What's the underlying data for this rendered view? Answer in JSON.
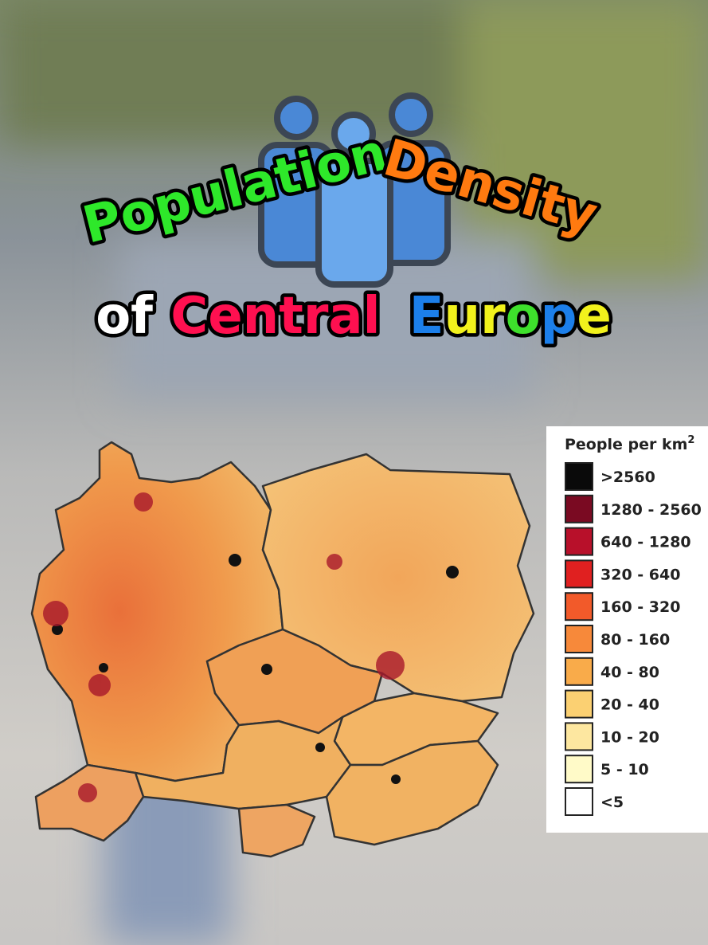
{
  "header": {
    "line1": [
      {
        "text": "Population",
        "color": "#2ee82a"
      },
      {
        "text": "Density",
        "color": "#ff7a10"
      }
    ],
    "line2": [
      {
        "text": "of",
        "color": "#ffffff"
      },
      {
        "text": "Central",
        "color": "#ff1050"
      }
    ],
    "europe": [
      {
        "text": "E",
        "color": "#1c7fea"
      },
      {
        "text": "u",
        "color": "#f2f21c"
      },
      {
        "text": "r",
        "color": "#f2f21c"
      },
      {
        "text": "o",
        "color": "#3ee02c"
      },
      {
        "text": "p",
        "color": "#1c7fea"
      },
      {
        "text": "e",
        "color": "#f2f21c"
      }
    ]
  },
  "legend": {
    "title": "People per km",
    "title_sup": "2",
    "items": [
      {
        "label": ">2560",
        "color": "#0a0a0a"
      },
      {
        "label": "1280 - 2560",
        "color": "#7a0a22"
      },
      {
        "label": "640 - 1280",
        "color": "#b8102a"
      },
      {
        "label": "320 - 640",
        "color": "#e02020"
      },
      {
        "label": "160 - 320",
        "color": "#f25a2a"
      },
      {
        "label": "80 - 160",
        "color": "#f7893a"
      },
      {
        "label": "40 - 80",
        "color": "#f9ab4a"
      },
      {
        "label": "20 - 40",
        "color": "#fbd072"
      },
      {
        "label": "10 - 20",
        "color": "#fde7a0"
      },
      {
        "label": "5 - 10",
        "color": "#fffac8"
      },
      {
        "label": "<5",
        "color": "#ffffff"
      }
    ]
  }
}
